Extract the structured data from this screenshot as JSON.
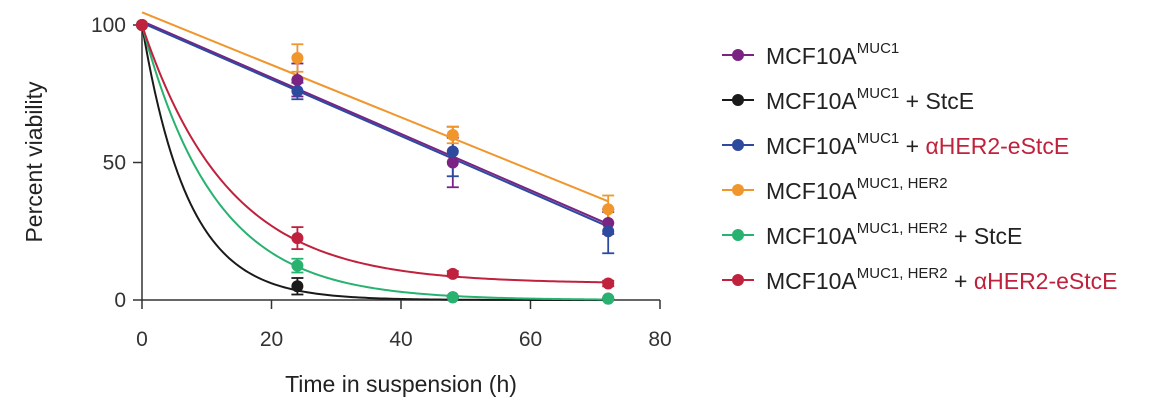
{
  "chart_data": {
    "type": "scatter",
    "xlabel": "Time in suspension (h)",
    "ylabel": "Percent viability",
    "xlim": [
      0,
      80
    ],
    "ylim": [
      0,
      100
    ],
    "xticks": [
      "0",
      "20",
      "40",
      "60",
      "80"
    ],
    "yticks": [
      "0",
      "50",
      "100"
    ],
    "grid": false,
    "legend": "right",
    "series": [
      {
        "label_base": "MCF10A",
        "label_sup": "MUC1",
        "label_rest": "",
        "label_highlight": "",
        "color": "#7b2383",
        "x": [
          0,
          24,
          48,
          72
        ],
        "y": [
          100,
          80,
          50,
          28
        ],
        "err": [
          0,
          6,
          9,
          4
        ],
        "fit": "linear"
      },
      {
        "label_base": "MCF10A",
        "label_sup": "MUC1",
        "label_rest": " + StcE",
        "label_highlight": "",
        "color": "#1a1a1a",
        "x": [
          0,
          24,
          48,
          72
        ],
        "y": [
          100,
          5,
          1,
          0.5
        ],
        "err": [
          0,
          3,
          0.5,
          0.5
        ],
        "fit": "exp",
        "k": 0.14,
        "plateau": 0
      },
      {
        "label_base": "MCF10A",
        "label_sup": "MUC1",
        "label_rest": " + ",
        "label_highlight": "αHER2-eStcE",
        "color": "#2e4a9e",
        "x": [
          0,
          24,
          48,
          72
        ],
        "y": [
          100,
          76,
          54,
          25
        ],
        "err": [
          0,
          3,
          9,
          8
        ],
        "fit": "linear"
      },
      {
        "label_base": "MCF10A",
        "label_sup": "MUC1, HER2",
        "label_rest": "",
        "label_highlight": "",
        "color": "#f0962d",
        "x": [
          0,
          24,
          48,
          72
        ],
        "y": [
          100,
          88,
          60,
          33
        ],
        "err": [
          0,
          5,
          3,
          5
        ],
        "fit": "linear"
      },
      {
        "label_base": "MCF10A",
        "label_sup": "MUC1, HER2",
        "label_rest": " + StcE",
        "label_highlight": "",
        "color": "#27b36f",
        "x": [
          0,
          24,
          48,
          72
        ],
        "y": [
          100,
          12.5,
          1,
          0.5
        ],
        "err": [
          0,
          2.5,
          0.5,
          0.5
        ],
        "fit": "exp",
        "k": 0.088,
        "plateau": 0
      },
      {
        "label_base": "MCF10A",
        "label_sup": "MUC1, HER2",
        "label_rest": " + ",
        "label_highlight": "αHER2-eStcE",
        "color": "#c0213c",
        "x": [
          0,
          24,
          48,
          72
        ],
        "y": [
          100,
          22.5,
          9.5,
          6
        ],
        "err": [
          0,
          4,
          1,
          1
        ],
        "fit": "exp",
        "k": 0.075,
        "plateau": 6
      }
    ],
    "highlight_color": "#c0213c"
  }
}
